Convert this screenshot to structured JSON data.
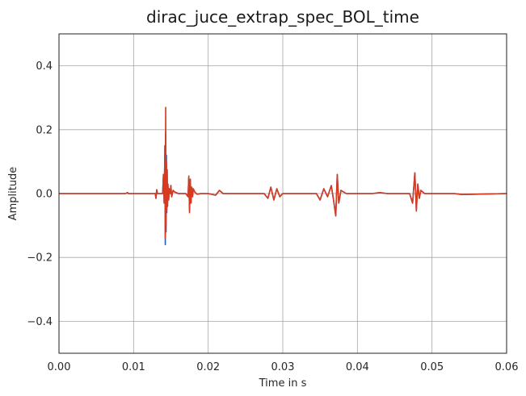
{
  "chart_data": {
    "type": "line",
    "title": "dirac_juce_extrap_spec_BOL_time",
    "xlabel": "Time in s",
    "ylabel": "Amplitude",
    "xlim": [
      0.0,
      0.06
    ],
    "ylim": [
      -0.5,
      0.5
    ],
    "x_ticks": [
      0.0,
      0.01,
      0.02,
      0.03,
      0.04,
      0.05,
      0.06
    ],
    "x_tick_labels": [
      "0.00",
      "0.01",
      "0.02",
      "0.03",
      "0.04",
      "0.05",
      "0.06"
    ],
    "y_ticks": [
      -0.4,
      -0.2,
      0.0,
      0.2,
      0.4
    ],
    "y_tick_labels": [
      "−0.4",
      "−0.2",
      "0.0",
      "0.2",
      "0.4"
    ],
    "grid": true,
    "legend": "none",
    "series": [
      {
        "color": "#1f5fbf",
        "x": [
          0.0,
          0.0089,
          0.0092,
          0.0093,
          0.0129,
          0.013,
          0.0131,
          0.0132,
          0.0139,
          0.014,
          0.0141,
          0.0142,
          0.01425,
          0.0143,
          0.01435,
          0.0144,
          0.01445,
          0.0145,
          0.01455,
          0.0146,
          0.0147,
          0.0148,
          0.0149,
          0.015,
          0.0151,
          0.0153,
          0.0155,
          0.016,
          0.017,
          0.0173,
          0.0174,
          0.0175,
          0.0176,
          0.0177,
          0.0178,
          0.0179,
          0.018,
          0.0182,
          0.0185,
          0.019,
          0.02,
          0.021,
          0.0215,
          0.022,
          0.023,
          0.0275,
          0.028,
          0.0284,
          0.0288,
          0.0292,
          0.0296,
          0.03,
          0.032,
          0.0345,
          0.035,
          0.0355,
          0.036,
          0.0365,
          0.0368,
          0.0371,
          0.0373,
          0.0375,
          0.0378,
          0.0385,
          0.042,
          0.043,
          0.044,
          0.047,
          0.0474,
          0.0477,
          0.0479,
          0.0481,
          0.0483,
          0.0485,
          0.049,
          0.053,
          0.054,
          0.06
        ],
        "y": [
          0.0,
          0.0,
          0.003,
          0.0,
          0.0,
          -0.015,
          0.012,
          0.0,
          0.0,
          0.06,
          -0.03,
          0.15,
          -0.16,
          0.19,
          -0.12,
          0.12,
          -0.06,
          0.075,
          -0.04,
          0.03,
          -0.02,
          0.015,
          0.0,
          0.025,
          -0.01,
          0.01,
          0.005,
          0.0,
          0.0,
          -0.01,
          0.05,
          -0.055,
          0.045,
          -0.03,
          0.02,
          -0.01,
          0.015,
          0.005,
          -0.002,
          0.0,
          0.0,
          -0.005,
          0.01,
          0.0,
          0.0,
          0.0,
          -0.015,
          0.02,
          -0.02,
          0.015,
          -0.01,
          0.0,
          0.0,
          0.0,
          -0.02,
          0.015,
          -0.01,
          0.025,
          -0.02,
          -0.07,
          0.06,
          -0.03,
          0.01,
          0.0,
          0.0,
          0.003,
          0.0,
          0.0,
          -0.03,
          0.065,
          -0.05,
          0.03,
          -0.015,
          0.01,
          0.0,
          0.0,
          -0.003,
          0.0
        ]
      },
      {
        "color": "#d63a1f",
        "x": [
          0.0,
          0.0089,
          0.0092,
          0.0093,
          0.0129,
          0.013,
          0.0131,
          0.0132,
          0.0139,
          0.014,
          0.0141,
          0.0142,
          0.01425,
          0.0143,
          0.01435,
          0.0144,
          0.01445,
          0.0145,
          0.01455,
          0.0146,
          0.0147,
          0.0148,
          0.0149,
          0.015,
          0.0151,
          0.0153,
          0.0155,
          0.016,
          0.017,
          0.0173,
          0.0174,
          0.0175,
          0.0176,
          0.0177,
          0.0178,
          0.0179,
          0.018,
          0.0182,
          0.0185,
          0.019,
          0.02,
          0.021,
          0.0215,
          0.022,
          0.023,
          0.0275,
          0.028,
          0.0284,
          0.0288,
          0.0292,
          0.0296,
          0.03,
          0.032,
          0.0345,
          0.035,
          0.0355,
          0.036,
          0.0365,
          0.0368,
          0.0371,
          0.0373,
          0.0375,
          0.0378,
          0.0385,
          0.042,
          0.043,
          0.044,
          0.047,
          0.0474,
          0.0477,
          0.0479,
          0.0481,
          0.0483,
          0.0485,
          0.049,
          0.053,
          0.054,
          0.06
        ],
        "y": [
          0.0,
          0.0,
          0.003,
          0.0,
          0.0,
          -0.015,
          0.012,
          0.0,
          0.0,
          0.06,
          -0.03,
          0.15,
          -0.14,
          0.27,
          -0.1,
          0.1,
          -0.05,
          0.07,
          -0.04,
          0.03,
          -0.02,
          0.015,
          0.0,
          0.025,
          -0.01,
          0.01,
          0.005,
          0.0,
          0.0,
          -0.01,
          0.055,
          -0.06,
          0.045,
          -0.03,
          0.02,
          -0.01,
          0.015,
          0.005,
          -0.002,
          0.0,
          0.0,
          -0.005,
          0.01,
          0.0,
          0.0,
          0.0,
          -0.015,
          0.02,
          -0.02,
          0.015,
          -0.01,
          0.0,
          0.0,
          0.0,
          -0.02,
          0.015,
          -0.01,
          0.025,
          -0.02,
          -0.07,
          0.06,
          -0.03,
          0.01,
          0.0,
          0.0,
          0.003,
          0.0,
          0.0,
          -0.03,
          0.065,
          -0.055,
          0.03,
          -0.015,
          0.01,
          0.0,
          0.0,
          -0.003,
          0.0
        ]
      }
    ]
  }
}
